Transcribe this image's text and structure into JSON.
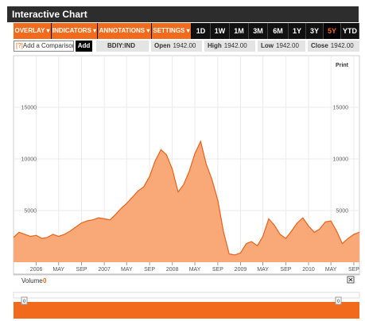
{
  "title": "Interactive Chart",
  "menus": [
    "OVERLAY ▾",
    "INDICATORS ▾",
    "ANNOTATIONS ▾",
    "SETTINGS ▾"
  ],
  "ranges": [
    "1D",
    "1W",
    "1M",
    "3M",
    "6M",
    "1Y",
    "3Y",
    "5Y",
    "YTD"
  ],
  "active_range": "5Y",
  "compare": {
    "prefix": "[?]",
    "label": "Add a Comparison",
    "button": "Add"
  },
  "ticker": "BDIY:IND",
  "stats": {
    "open_label": "Open",
    "open": "1942.00",
    "high_label": "High",
    "high": "1942.00",
    "low_label": "Low",
    "low": "1942.00",
    "close_label": "Close",
    "close": "1942.00"
  },
  "print_label": "Print",
  "volume": {
    "label": "Volume",
    "marker": "0",
    "close_icon": "close-icon",
    "handle_left": "0",
    "handle_right": "0"
  },
  "colors": {
    "accent": "#f26b1d",
    "area_fill": "#f9a878",
    "area_line": "#e8611a"
  },
  "chart_data": {
    "type": "area",
    "title": "",
    "xlabel": "",
    "ylabel": "",
    "ylim": [
      0,
      20000
    ],
    "yticks": [
      5000,
      10000,
      15000
    ],
    "xlim": [
      "2005-09-01",
      "2010-10-01"
    ],
    "grid": true,
    "xticks": [
      {
        "label": "2006",
        "date": "2006-01-01"
      },
      {
        "label": "MAY",
        "date": "2006-05-01"
      },
      {
        "label": "SEP",
        "date": "2006-09-01"
      },
      {
        "label": "2007",
        "date": "2007-01-01"
      },
      {
        "label": "MAY",
        "date": "2007-05-01"
      },
      {
        "label": "SEP",
        "date": "2007-09-01"
      },
      {
        "label": "2008",
        "date": "2008-01-01"
      },
      {
        "label": "MAY",
        "date": "2008-05-01"
      },
      {
        "label": "SEP",
        "date": "2008-09-01"
      },
      {
        "label": "2009",
        "date": "2009-01-01"
      },
      {
        "label": "MAY",
        "date": "2009-05-01"
      },
      {
        "label": "SEP",
        "date": "2009-09-01"
      },
      {
        "label": "2010",
        "date": "2010-01-01"
      },
      {
        "label": "MAY",
        "date": "2010-05-01"
      },
      {
        "label": "SEP",
        "date": "2010-09-01"
      }
    ],
    "series": [
      {
        "points": [
          [
            "2005-09-01",
            2400
          ],
          [
            "2005-10-01",
            2900
          ],
          [
            "2005-11-01",
            2700
          ],
          [
            "2005-12-01",
            2500
          ],
          [
            "2006-01-01",
            2600
          ],
          [
            "2006-02-01",
            2300
          ],
          [
            "2006-03-01",
            2400
          ],
          [
            "2006-04-01",
            2700
          ],
          [
            "2006-05-01",
            2500
          ],
          [
            "2006-06-01",
            2700
          ],
          [
            "2006-07-01",
            3000
          ],
          [
            "2006-08-01",
            3400
          ],
          [
            "2006-09-01",
            3800
          ],
          [
            "2006-10-01",
            4000
          ],
          [
            "2006-11-01",
            4100
          ],
          [
            "2006-12-01",
            4300
          ],
          [
            "2007-01-01",
            4200
          ],
          [
            "2007-02-01",
            4100
          ],
          [
            "2007-03-01",
            4600
          ],
          [
            "2007-04-01",
            5200
          ],
          [
            "2007-05-01",
            5700
          ],
          [
            "2007-06-01",
            6300
          ],
          [
            "2007-07-01",
            6900
          ],
          [
            "2007-08-01",
            7300
          ],
          [
            "2007-09-01",
            8300
          ],
          [
            "2007-10-01",
            9800
          ],
          [
            "2007-11-01",
            10900
          ],
          [
            "2007-12-01",
            10400
          ],
          [
            "2008-01-01",
            9000
          ],
          [
            "2008-02-01",
            6800
          ],
          [
            "2008-03-01",
            7500
          ],
          [
            "2008-04-01",
            8800
          ],
          [
            "2008-05-01",
            10500
          ],
          [
            "2008-06-01",
            11700
          ],
          [
            "2008-07-01",
            9500
          ],
          [
            "2008-08-01",
            8000
          ],
          [
            "2008-09-01",
            6000
          ],
          [
            "2008-10-01",
            3000
          ],
          [
            "2008-11-01",
            800
          ],
          [
            "2008-12-01",
            700
          ],
          [
            "2009-01-01",
            900
          ],
          [
            "2009-02-01",
            1800
          ],
          [
            "2009-03-01",
            2000
          ],
          [
            "2009-04-01",
            1600
          ],
          [
            "2009-05-01",
            2500
          ],
          [
            "2009-06-01",
            4200
          ],
          [
            "2009-07-01",
            3600
          ],
          [
            "2009-08-01",
            2700
          ],
          [
            "2009-09-01",
            2300
          ],
          [
            "2009-10-01",
            3000
          ],
          [
            "2009-11-01",
            3800
          ],
          [
            "2009-12-01",
            4300
          ],
          [
            "2010-01-01",
            3500
          ],
          [
            "2010-02-01",
            2900
          ],
          [
            "2010-03-01",
            3200
          ],
          [
            "2010-04-01",
            3900
          ],
          [
            "2010-05-01",
            4000
          ],
          [
            "2010-06-01",
            3000
          ],
          [
            "2010-07-01",
            1800
          ],
          [
            "2010-08-01",
            2300
          ],
          [
            "2010-09-01",
            2700
          ],
          [
            "2010-10-01",
            2900
          ]
        ]
      }
    ]
  }
}
